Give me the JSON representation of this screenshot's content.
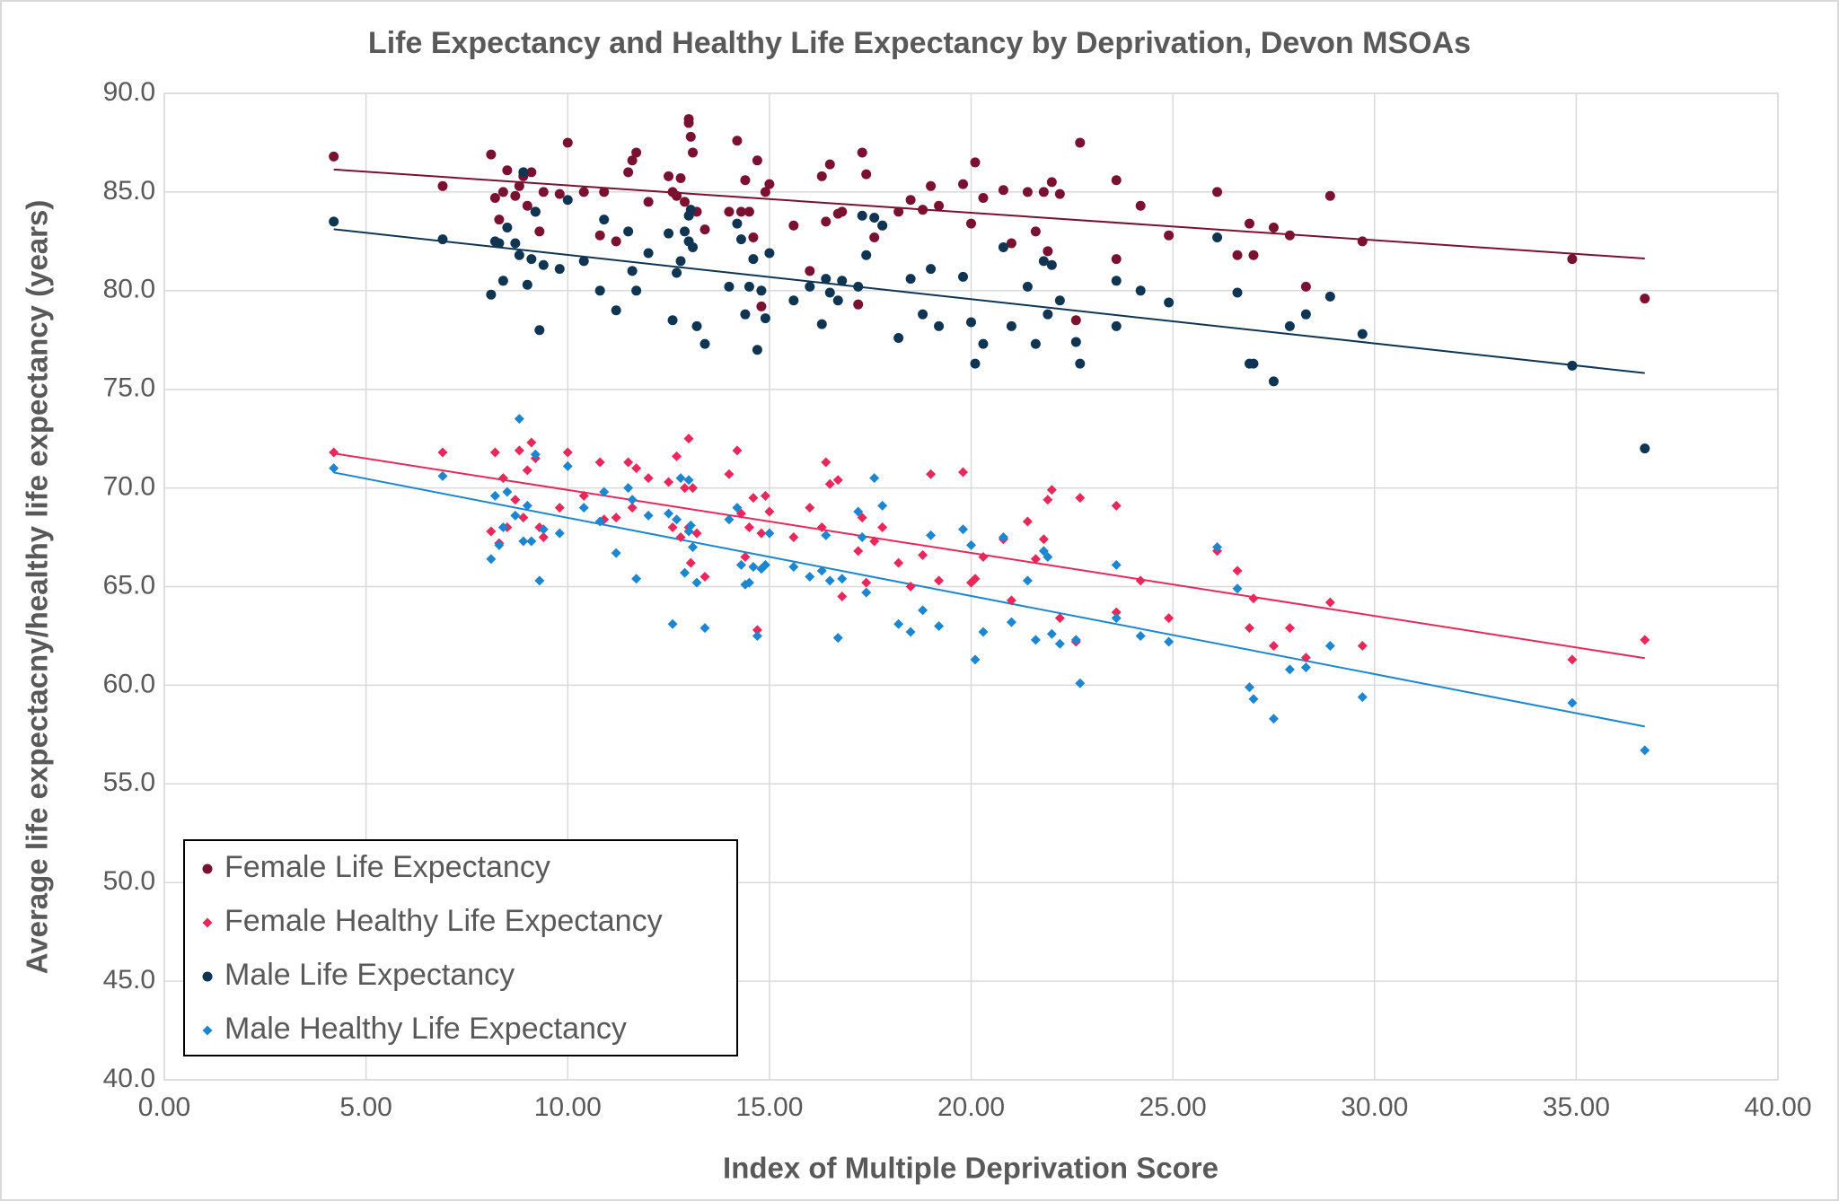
{
  "chart_data": {
    "type": "scatter",
    "title": "Life Expectancy and Healthy Life Expectancy by Deprivation, Devon MSOAs",
    "x_label": "Index of Multiple Deprivation Score",
    "y_label": "Average life expectacny/healthy life expectancy (years)",
    "x": [
      4.2,
      6.9,
      8.1,
      8.2,
      8.3,
      8.4,
      8.5,
      8.7,
      8.8,
      8.9,
      9.0,
      9.1,
      9.2,
      9.3,
      9.4,
      9.8,
      10.0,
      10.4,
      10.8,
      10.9,
      11.2,
      11.5,
      11.6,
      11.7,
      12.0,
      12.5,
      12.6,
      12.7,
      12.8,
      12.9,
      13.0,
      13.0,
      13.05,
      13.1,
      13.2,
      13.4,
      14.0,
      14.2,
      14.3,
      14.4,
      14.5,
      14.6,
      14.7,
      14.8,
      14.9,
      15.0,
      15.6,
      16.0,
      16.3,
      16.4,
      16.5,
      16.7,
      16.8,
      17.2,
      17.3,
      17.4,
      17.6,
      17.8,
      18.2,
      18.5,
      18.8,
      19.0,
      19.2,
      19.8,
      20.0,
      20.1,
      20.3,
      20.8,
      21.0,
      21.4,
      21.6,
      21.8,
      21.9,
      22.0,
      22.2,
      22.6,
      22.7,
      23.6,
      23.6,
      24.2,
      24.9,
      26.1,
      26.6,
      26.9,
      27.0,
      27.5,
      27.9,
      28.3,
      28.9,
      29.7,
      34.9,
      36.7
    ],
    "series": [
      {
        "name": "Female Life Expectancy",
        "color": "#7b1130",
        "marker": "circle",
        "values": [
          86.8,
          85.3,
          86.9,
          84.7,
          83.6,
          85.0,
          86.1,
          84.8,
          85.3,
          85.8,
          84.3,
          86.0,
          84.0,
          83.0,
          85.0,
          84.9,
          87.5,
          85.0,
          82.8,
          85.0,
          82.5,
          86.0,
          86.6,
          87.0,
          84.5,
          85.8,
          85.0,
          84.8,
          85.7,
          84.5,
          88.5,
          88.7,
          87.8,
          87.0,
          84.0,
          83.1,
          84.0,
          87.6,
          84.0,
          85.6,
          84.0,
          82.7,
          86.6,
          79.2,
          85.0,
          85.4,
          83.3,
          81.0,
          85.8,
          83.5,
          86.4,
          83.9,
          84.0,
          79.3,
          87.0,
          85.9,
          82.7,
          83.3,
          84.0,
          84.6,
          84.1,
          85.3,
          84.3,
          85.4,
          83.4,
          86.5,
          84.7,
          85.1,
          82.4,
          85.0,
          83.0,
          85.0,
          82.0,
          85.5,
          84.9,
          78.5,
          87.5,
          85.6,
          81.6,
          84.3,
          82.8,
          85.0,
          81.8,
          83.4,
          81.8,
          83.2,
          82.8,
          80.2,
          84.8,
          82.5,
          81.6,
          79.6
        ]
      },
      {
        "name": "Female Healthy Life Expectancy",
        "color": "#e8285a",
        "marker": "diamond",
        "values": [
          71.8,
          71.8,
          67.8,
          71.8,
          67.2,
          70.5,
          68.0,
          69.4,
          71.9,
          68.5,
          70.9,
          72.3,
          71.5,
          68.0,
          67.5,
          69.0,
          71.8,
          69.6,
          71.3,
          68.4,
          68.5,
          71.3,
          69.0,
          71.0,
          70.5,
          70.3,
          68.0,
          71.6,
          67.5,
          70.0,
          72.5,
          68.0,
          66.2,
          70.0,
          67.7,
          65.5,
          70.7,
          71.9,
          68.7,
          66.5,
          68.0,
          69.5,
          62.8,
          67.7,
          69.6,
          68.8,
          67.5,
          69.0,
          68.0,
          71.3,
          70.2,
          70.4,
          64.5,
          66.8,
          68.5,
          65.2,
          67.3,
          68.0,
          66.2,
          65.0,
          66.6,
          70.7,
          65.3,
          70.8,
          65.2,
          65.4,
          66.5,
          67.4,
          64.3,
          68.3,
          66.4,
          67.4,
          69.4,
          69.9,
          63.4,
          62.2,
          69.5,
          69.1,
          63.7,
          65.3,
          63.4,
          66.8,
          65.8,
          62.9,
          64.4,
          62.0,
          62.9,
          61.4,
          64.2,
          62.0,
          61.3,
          62.3
        ]
      },
      {
        "name": "Male Life Expectancy",
        "color": "#0f3553",
        "marker": "circle",
        "values": [
          83.5,
          82.6,
          79.8,
          82.5,
          82.4,
          80.5,
          83.2,
          82.4,
          81.8,
          86.0,
          80.3,
          81.6,
          84.0,
          78.0,
          81.3,
          81.1,
          84.6,
          81.5,
          80.0,
          83.6,
          79.0,
          83.0,
          81.0,
          80.0,
          81.9,
          82.9,
          78.5,
          80.9,
          81.5,
          83.0,
          83.8,
          82.5,
          84.1,
          82.2,
          78.2,
          77.3,
          80.2,
          83.4,
          82.6,
          78.8,
          80.2,
          81.6,
          77.0,
          80.0,
          78.6,
          81.9,
          79.5,
          80.2,
          78.3,
          80.6,
          79.9,
          79.5,
          80.5,
          80.2,
          83.8,
          81.8,
          83.7,
          83.3,
          77.6,
          80.6,
          78.8,
          81.1,
          78.2,
          80.7,
          78.4,
          76.3,
          77.3,
          82.2,
          78.2,
          80.2,
          77.3,
          81.5,
          78.8,
          81.3,
          79.5,
          77.4,
          76.3,
          80.5,
          78.2,
          80.0,
          79.4,
          82.7,
          79.9,
          76.3,
          76.3,
          75.4,
          78.2,
          78.8,
          79.7,
          77.8,
          76.2,
          72.0
        ]
      },
      {
        "name": "Male Healthy Life Expectancy",
        "color": "#1c86d0",
        "marker": "diamond",
        "values": [
          71.0,
          70.6,
          66.4,
          69.6,
          67.1,
          68.0,
          69.8,
          68.6,
          73.5,
          67.3,
          69.1,
          67.3,
          71.7,
          65.3,
          67.9,
          67.7,
          71.1,
          69.0,
          68.3,
          69.8,
          66.7,
          70.0,
          69.4,
          65.4,
          68.6,
          68.7,
          63.1,
          68.4,
          70.5,
          65.7,
          67.8,
          70.4,
          68.1,
          67.0,
          65.2,
          62.9,
          68.4,
          69.0,
          66.1,
          65.1,
          65.2,
          66.0,
          62.5,
          65.9,
          66.1,
          67.7,
          66.0,
          65.5,
          65.8,
          67.6,
          65.3,
          62.4,
          65.4,
          68.8,
          67.5,
          64.7,
          70.5,
          69.1,
          63.1,
          62.7,
          63.8,
          67.6,
          63.0,
          67.9,
          67.1,
          61.3,
          62.7,
          67.5,
          63.2,
          65.3,
          62.3,
          66.8,
          66.5,
          62.6,
          62.1,
          62.3,
          60.1,
          63.4,
          66.1,
          62.5,
          62.2,
          67.0,
          64.9,
          59.9,
          59.3,
          58.3,
          60.8,
          60.9,
          62.0,
          59.4,
          59.1,
          56.7
        ]
      }
    ],
    "trendline": "linear",
    "xlim": [
      0,
      40
    ],
    "xticks": [
      {
        "value": 0,
        "label": "0.00"
      },
      {
        "value": 5,
        "label": "5.00"
      },
      {
        "value": 10,
        "label": "10.00"
      },
      {
        "value": 15,
        "label": "15.00"
      },
      {
        "value": 20,
        "label": "20.00"
      },
      {
        "value": 25,
        "label": "25.00"
      },
      {
        "value": 30,
        "label": "30.00"
      },
      {
        "value": 35,
        "label": "35.00"
      },
      {
        "value": 40,
        "label": "40.00"
      }
    ],
    "ylim": [
      40,
      90
    ],
    "yticks": [
      {
        "value": 40,
        "label": "40.0"
      },
      {
        "value": 45,
        "label": "45.0"
      },
      {
        "value": 50,
        "label": "50.0"
      },
      {
        "value": 55,
        "label": "55.0"
      },
      {
        "value": 60,
        "label": "60.0"
      },
      {
        "value": 65,
        "label": "65.0"
      },
      {
        "value": 70,
        "label": "70.0"
      },
      {
        "value": 75,
        "label": "75.0"
      },
      {
        "value": 80,
        "label": "80.0"
      },
      {
        "value": 85,
        "label": "85.0"
      },
      {
        "value": 90,
        "label": "90.0"
      }
    ],
    "grid": true,
    "legend": "lower left"
  }
}
